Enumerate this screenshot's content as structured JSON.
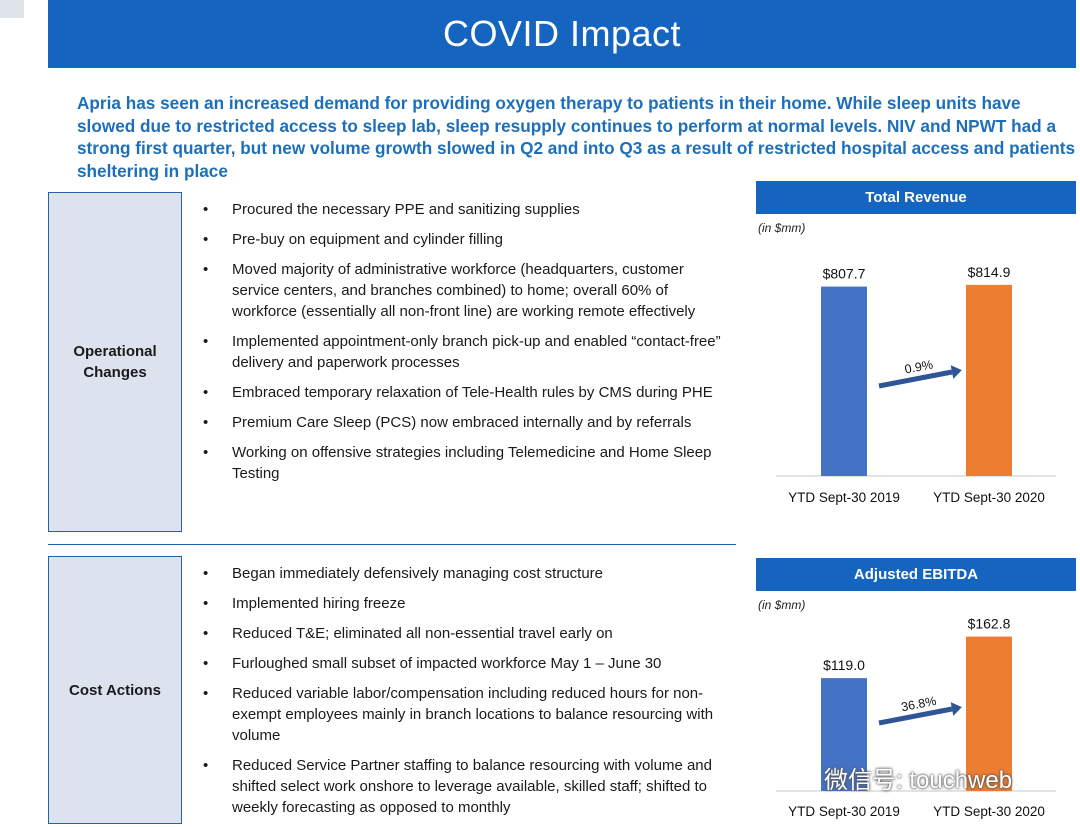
{
  "slide": {
    "title": "COVID Impact",
    "intro": "Apria has seen an increased demand for providing oxygen therapy to patients in their home. While sleep units have slowed due to restricted access to sleep lab, sleep resupply continues to perform at normal levels. NIV and NPWT had a strong first quarter, but new volume growth slowed in Q2 and into Q3 as a result of restricted hospital access and patients sheltering in place"
  },
  "operational": {
    "label": "Operational Changes",
    "bullet_glyph": "•",
    "items": [
      "Procured the necessary PPE and sanitizing supplies",
      "Pre-buy on equipment and cylinder filling",
      "Moved majority of administrative workforce (headquarters, customer service centers, and branches combined) to home; overall 60% of workforce (essentially all non-front line) are working remote effectively",
      "Implemented appointment-only branch pick-up and enabled “contact-free” delivery and paperwork processes",
      "Embraced temporary relaxation of Tele-Health rules by CMS during PHE",
      "Premium Care Sleep (PCS) now embraced internally and by referrals",
      "Working on offensive strategies including Telemedicine and Home Sleep Testing"
    ]
  },
  "cost": {
    "label": "Cost Actions",
    "items": [
      "Began immediately defensively managing cost structure",
      "Implemented hiring freeze",
      "Reduced T&E; eliminated all non-essential travel early on",
      "Furloughed small subset of impacted workforce May 1 – June 30",
      "Reduced variable labor/compensation including reduced hours for non-exempt employees mainly in branch locations to balance resourcing with volume",
      "Reduced Service Partner staffing to balance resourcing with volume and shifted select work onshore to leverage available, skilled staff; shifted to weekly forecasting as opposed to monthly"
    ]
  },
  "chart_data": [
    {
      "type": "bar",
      "title": "Total Revenue",
      "subtitle": "(in $mm)",
      "categories": [
        "YTD Sept-30 2019",
        "YTD Sept-30 2020"
      ],
      "values": [
        807.7,
        814.9
      ],
      "value_labels": [
        "$807.7",
        "$814.9"
      ],
      "colors": [
        "#4472c4",
        "#ed7d31"
      ],
      "growth_label": "0.9%",
      "ylim": [
        0,
        840
      ]
    },
    {
      "type": "bar",
      "title": "Adjusted EBITDA",
      "subtitle": "(in $mm)",
      "categories": [
        "YTD Sept-30 2019",
        "YTD Sept-30 2020"
      ],
      "values": [
        119.0,
        162.8
      ],
      "value_labels": [
        "$119.0",
        "$162.8"
      ],
      "colors": [
        "#4472c4",
        "#ed7d31"
      ],
      "growth_label": "36.8%",
      "ylim": [
        0,
        175
      ]
    }
  ],
  "watermark": {
    "icon": "wechat-icon",
    "text": "微信号: touchweb"
  }
}
